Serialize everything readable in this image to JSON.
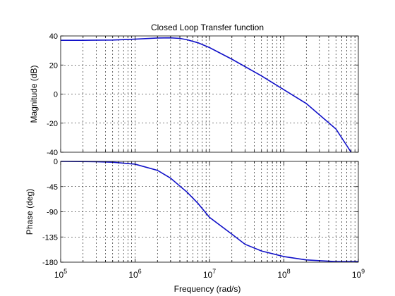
{
  "figure": {
    "title": "Closed Loop Transfer function",
    "xlabel": "Frequency  (rad/s)"
  },
  "colors": {
    "line": "#1010c8",
    "grid": "#000000",
    "axes": "#000000",
    "background": "#ffffff"
  },
  "chart_data": [
    {
      "type": "line",
      "title": "Closed Loop Transfer function",
      "ylabel": "Magnitude (dB)",
      "xscale": "log",
      "xlim": [
        100000,
        1000000000
      ],
      "ylim": [
        -40,
        40
      ],
      "yticks": [
        -40,
        -20,
        0,
        20,
        40
      ],
      "ytick_labels": [
        "-40",
        "-20",
        "0",
        "20",
        "40"
      ],
      "grid": true,
      "series": [
        {
          "x": [
            100000,
            200000,
            500000,
            1000000,
            2000000,
            3000000,
            4000000,
            5000000,
            7000000,
            10000000,
            20000000,
            50000000,
            100000000,
            200000000,
            500000000,
            800000000
          ],
          "y": [
            37,
            37,
            37.2,
            37.8,
            38.6,
            38.7,
            38.3,
            37.4,
            35.3,
            32,
            24,
            12.5,
            3,
            -6.5,
            -24,
            -40
          ]
        }
      ]
    },
    {
      "type": "line",
      "ylabel": "Phase (deg)",
      "xlabel": "Frequency  (rad/s)",
      "xscale": "log",
      "xlim": [
        100000,
        1000000000
      ],
      "ylim": [
        -180,
        0
      ],
      "yticks": [
        -180,
        -135,
        -90,
        -45,
        0
      ],
      "ytick_labels": [
        "-180",
        "-135",
        "-90",
        "-45",
        "0"
      ],
      "xticks": [
        100000,
        1000000,
        10000000,
        100000000,
        1000000000
      ],
      "xtick_labels": [
        {
          "base": "10",
          "exp": "5"
        },
        {
          "base": "10",
          "exp": "6"
        },
        {
          "base": "10",
          "exp": "7"
        },
        {
          "base": "10",
          "exp": "8"
        },
        {
          "base": "10",
          "exp": "9"
        }
      ],
      "grid": true,
      "series": [
        {
          "x": [
            100000,
            300000,
            500000,
            1000000,
            2000000,
            3000000,
            5000000,
            7000000,
            10000000,
            20000000,
            30000000,
            50000000,
            100000000,
            200000000,
            500000000,
            1000000000
          ],
          "y": [
            0,
            -0.5,
            -1.5,
            -5,
            -16,
            -30,
            -55,
            -75,
            -100,
            -130,
            -148,
            -160,
            -170,
            -176,
            -179,
            -179
          ]
        }
      ]
    }
  ]
}
